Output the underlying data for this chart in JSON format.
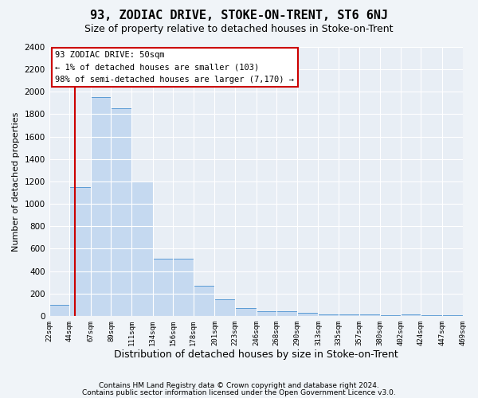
{
  "title": "93, ZODIAC DRIVE, STOKE-ON-TRENT, ST6 6NJ",
  "subtitle": "Size of property relative to detached houses in Stoke-on-Trent",
  "xlabel": "Distribution of detached houses by size in Stoke-on-Trent",
  "ylabel": "Number of detached properties",
  "footer_line1": "Contains HM Land Registry data © Crown copyright and database right 2024.",
  "footer_line2": "Contains public sector information licensed under the Open Government Licence v3.0.",
  "annotation_line1": "93 ZODIAC DRIVE: 50sqm",
  "annotation_line2": "← 1% of detached houses are smaller (103)",
  "annotation_line3": "98% of semi-detached houses are larger (7,170) →",
  "bar_color": "#c5d9f0",
  "bar_edge_color": "#5b9bd5",
  "property_line_x": 50,
  "property_line_color": "#cc0000",
  "bins": [
    22,
    44,
    67,
    89,
    111,
    134,
    156,
    178,
    201,
    223,
    246,
    268,
    290,
    313,
    335,
    357,
    380,
    402,
    424,
    447,
    469
  ],
  "values": [
    100,
    1150,
    1950,
    1850,
    1200,
    510,
    510,
    270,
    145,
    70,
    40,
    40,
    30,
    15,
    10,
    10,
    5,
    15,
    5,
    5
  ],
  "ylim": [
    0,
    2400
  ],
  "yticks": [
    0,
    200,
    400,
    600,
    800,
    1000,
    1200,
    1400,
    1600,
    1800,
    2000,
    2200,
    2400
  ],
  "background_color": "#f0f4f8",
  "plot_bg_color": "#e8eef5",
  "grid_color": "#c8d8e8",
  "annotation_box_color": "#ffffff",
  "annotation_box_edge": "#cc0000",
  "title_fontsize": 11,
  "subtitle_fontsize": 9
}
